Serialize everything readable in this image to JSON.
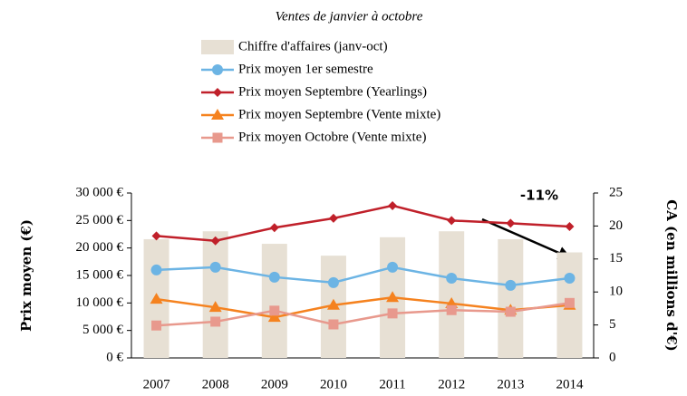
{
  "chart_data": {
    "type": "bar-line",
    "subtitle": "Ventes de janvier à octobre",
    "categories": [
      "2007",
      "2008",
      "2009",
      "2010",
      "2011",
      "2012",
      "2013",
      "2014"
    ],
    "series": [
      {
        "name": "Chiffre d'affaires (janv-oct)",
        "type": "bar",
        "axis": "y2",
        "color": "#e7e0d4",
        "values": [
          18,
          19.2,
          17.3,
          15.5,
          18.3,
          19.2,
          18,
          16
        ]
      },
      {
        "name": "Prix moyen 1er semestre",
        "type": "line",
        "marker": "circle",
        "color": "#6cb4e4",
        "values": [
          16000,
          16500,
          14700,
          13700,
          16500,
          14500,
          13200,
          14500
        ]
      },
      {
        "name": "Prix moyen Septembre (Yearlings)",
        "type": "line",
        "marker": "diamond",
        "color": "#c0202a",
        "values": [
          22200,
          21300,
          23700,
          25400,
          27700,
          25000,
          24500,
          23900
        ]
      },
      {
        "name": "Prix moyen Septembre (Vente mixte)",
        "type": "line",
        "marker": "triangle",
        "color": "#f5821f",
        "values": [
          10700,
          9200,
          7400,
          9600,
          11000,
          9900,
          8700,
          9600
        ]
      },
      {
        "name": "Prix moyen Octobre (Vente mixte)",
        "type": "line",
        "marker": "square",
        "color": "#e8998d",
        "values": [
          5900,
          6600,
          8600,
          6100,
          8100,
          8700,
          8400,
          10000
        ]
      }
    ],
    "ylabel": "Prix moyen (€)",
    "y2label": "CA (en millions d'€)",
    "ylim": [
      0,
      30000
    ],
    "yticks": [
      {
        "value": 0,
        "label": "0 €"
      },
      {
        "value": 5000,
        "label": "5 000 €"
      },
      {
        "value": 10000,
        "label": "10 000 €"
      },
      {
        "value": 15000,
        "label": "15 000 €"
      },
      {
        "value": 20000,
        "label": "20 000 €"
      },
      {
        "value": 25000,
        "label": "25 000 €"
      },
      {
        "value": 30000,
        "label": "30 000 €"
      }
    ],
    "y2lim": [
      0,
      25
    ],
    "y2ticks": [
      0,
      5,
      10,
      15,
      20,
      25
    ],
    "annotation": "-11%"
  }
}
